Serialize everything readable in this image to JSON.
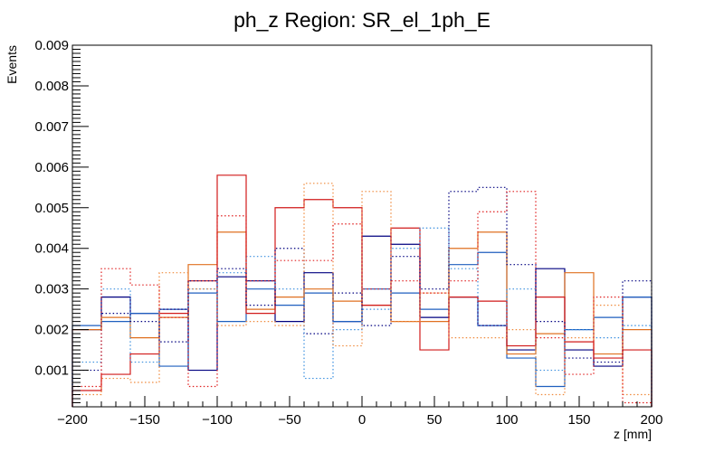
{
  "chart_data": {
    "type": "histogram",
    "title": "ph_z Region: SR_el_1ph_E",
    "xlabel": "z [mm]",
    "ylabel": "Events",
    "xlim": [
      -200,
      200
    ],
    "ylim": [
      0.0001,
      0.009
    ],
    "bin_edges": [
      -200,
      -180,
      -160,
      -140,
      -120,
      -100,
      -80,
      -60,
      -40,
      -20,
      0,
      20,
      40,
      60,
      80,
      100,
      120,
      140,
      160,
      180,
      200
    ],
    "x_ticks": [
      -200,
      -150,
      -100,
      -50,
      0,
      50,
      100,
      150,
      200
    ],
    "x_tick_labels": [
      "−200",
      "−150",
      "−100",
      "−50",
      "0",
      "50",
      "100",
      "150",
      "200"
    ],
    "y_ticks": [
      0.001,
      0.002,
      0.003,
      0.004,
      0.005,
      0.006,
      0.007,
      0.008,
      0.009
    ],
    "y_tick_labels": [
      "0.001",
      "0.002",
      "0.003",
      "0.004",
      "0.005",
      "0.006",
      "0.007",
      "0.008",
      "0.009"
    ],
    "series": [
      {
        "name": "navy solid",
        "color": "#000080",
        "style": "solid",
        "values": [
          0.002,
          0.0028,
          0.0024,
          0.0025,
          0.001,
          0.0033,
          0.0032,
          0.0022,
          0.0034,
          0.0022,
          0.0043,
          0.0041,
          0.0023,
          0.0028,
          0.0021,
          0.0015,
          0.0035,
          0.0015,
          0.0011,
          0.0028
        ]
      },
      {
        "name": "blue solid",
        "color": "#1f5fbf",
        "style": "solid",
        "values": [
          0.0021,
          0.0022,
          0.0024,
          0.0011,
          0.0029,
          0.0022,
          0.003,
          0.0026,
          0.0029,
          0.0022,
          0.003,
          0.0029,
          0.0025,
          0.0036,
          0.0039,
          0.0013,
          0.0006,
          0.002,
          0.0023,
          0.0028
        ]
      },
      {
        "name": "orange solid",
        "color": "#e07020",
        "style": "solid",
        "values": [
          0.002,
          0.0023,
          0.0018,
          0.0023,
          0.0036,
          0.0044,
          0.0025,
          0.0028,
          0.003,
          0.0027,
          0.0026,
          0.0022,
          0.0022,
          0.004,
          0.0044,
          0.0014,
          0.0019,
          0.0034,
          0.0014,
          0.002
        ]
      },
      {
        "name": "red solid",
        "color": "#d11a1a",
        "style": "solid",
        "values": [
          0.0005,
          0.0009,
          0.0014,
          0.0024,
          0.0032,
          0.0058,
          0.0024,
          0.005,
          0.0052,
          0.005,
          0.0026,
          0.0045,
          0.0015,
          0.0028,
          0.0027,
          0.0016,
          0.0028,
          0.0017,
          0.0013,
          0.0015
        ]
      },
      {
        "name": "navy dotted",
        "color": "#000080",
        "style": "dotted",
        "values": [
          0.001,
          0.0024,
          0.0022,
          0.0017,
          0.0032,
          0.0035,
          0.0026,
          0.004,
          0.0019,
          0.0029,
          0.0021,
          0.0038,
          0.003,
          0.0054,
          0.0055,
          0.0036,
          0.0022,
          0.0013,
          0.0012,
          0.0032
        ]
      },
      {
        "name": "blue dotted",
        "color": "#3a8fdf",
        "style": "dotted",
        "values": [
          0.0012,
          0.003,
          0.0012,
          0.0025,
          0.003,
          0.0034,
          0.0038,
          0.003,
          0.0008,
          0.002,
          0.0025,
          0.004,
          0.0045,
          0.0035,
          0.0021,
          0.003,
          0.001,
          0.002,
          0.0018,
          0.0021
        ]
      },
      {
        "name": "orange dotted",
        "color": "#f08a3c",
        "style": "dotted",
        "values": [
          0.0004,
          0.0008,
          0.0007,
          0.0034,
          0.003,
          0.0021,
          0.0022,
          0.0021,
          0.0056,
          0.0016,
          0.0054,
          0.0022,
          0.0029,
          0.0018,
          0.0018,
          0.002,
          0.0004,
          0.0018,
          0.0026,
          0.0004
        ]
      },
      {
        "name": "red dotted",
        "color": "#e02020",
        "style": "dotted",
        "values": [
          0.0006,
          0.0035,
          0.0031,
          0.0023,
          0.0006,
          0.0048,
          0.0032,
          0.0037,
          0.0037,
          0.0046,
          0.003,
          0.0032,
          0.0029,
          0.0032,
          0.0049,
          0.0054,
          0.0018,
          0.0009,
          0.0028,
          0.0002
        ]
      }
    ]
  }
}
